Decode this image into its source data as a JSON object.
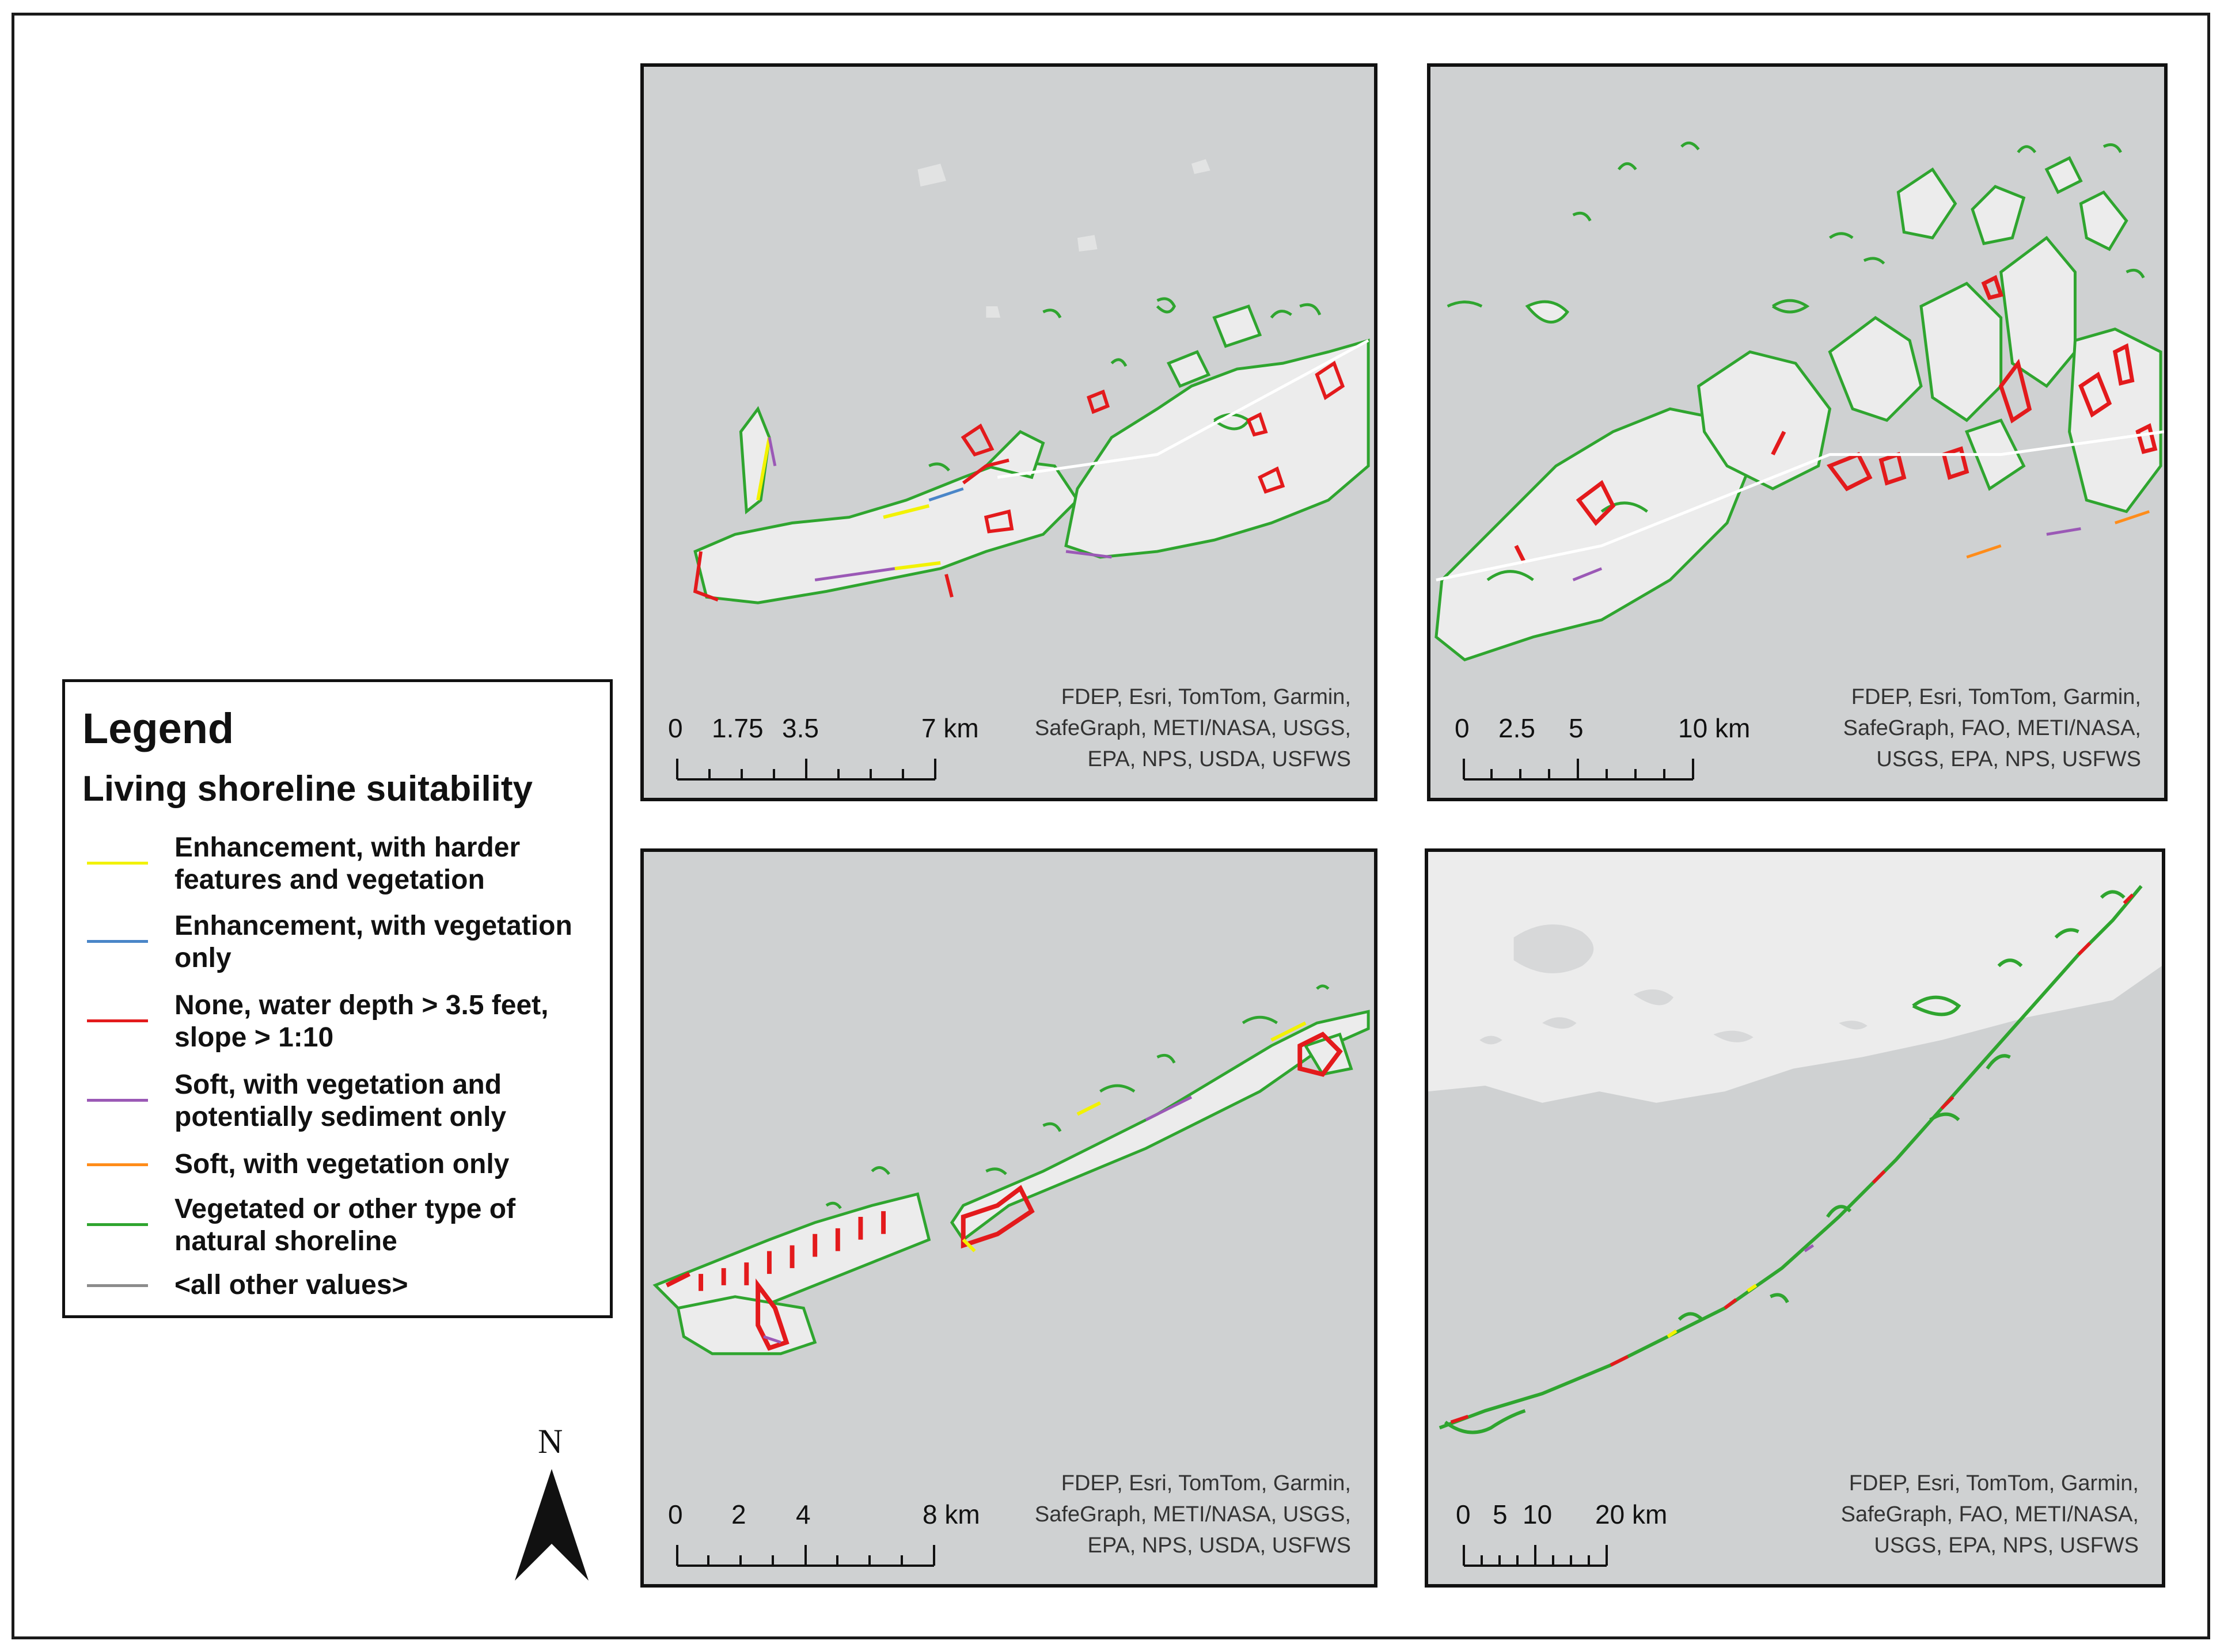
{
  "legend": {
    "title": "Legend",
    "subtitle": "Living shoreline suitability",
    "items": [
      {
        "line1": "Enhancement, with harder",
        "line2": "features and vegetation",
        "color": "#f2f200"
      },
      {
        "line1": "Enhancement, with vegetation",
        "line2": "only",
        "color": "#4a86c8"
      },
      {
        "line1": "None, water depth > 3.5 feet,",
        "line2": "slope > 1:10",
        "color": "#e31a1c"
      },
      {
        "line1": "Soft, with vegetation and",
        "line2": "potentially sediment only",
        "color": "#9b59b6"
      },
      {
        "line1": "Soft, with vegetation only",
        "line2": "",
        "color": "#ff8c1a"
      },
      {
        "line1": "Vegetated or other type of",
        "line2": "natural shoreline",
        "color": "#2fa52f"
      },
      {
        "line1": "<all other values>",
        "line2": "",
        "color": "#8c8c8c"
      }
    ]
  },
  "north_arrow": {
    "label": "N"
  },
  "maps": [
    {
      "scale_labels": [
        "0",
        "1.75",
        "3.5",
        "7 km"
      ],
      "attribution": [
        "FDEP, Esri, TomTom, Garmin,",
        "SafeGraph, METI/NASA, USGS,",
        "EPA, NPS, USDA, USFWS"
      ]
    },
    {
      "scale_labels": [
        "0",
        "2.5",
        "5",
        "10 km"
      ],
      "attribution": [
        "FDEP, Esri, TomTom, Garmin,",
        "SafeGraph, FAO, METI/NASA,",
        "USGS, EPA, NPS, USFWS"
      ]
    },
    {
      "scale_labels": [
        "0",
        "2",
        "4",
        "8 km"
      ],
      "attribution": [
        "FDEP, Esri, TomTom, Garmin,",
        "SafeGraph, METI/NASA, USGS,",
        "EPA, NPS, USDA, USFWS"
      ]
    },
    {
      "scale_labels": [
        "0",
        "5",
        "10",
        "20 km"
      ],
      "attribution": [
        "FDEP, Esri, TomTom, Garmin,",
        "SafeGraph, FAO, METI/NASA,",
        "USGS, EPA, NPS, USFWS"
      ]
    }
  ],
  "colors": {
    "water": "#cfd1d2",
    "land": "#ececec",
    "natural": "#2fa52f",
    "none": "#e31a1c"
  }
}
